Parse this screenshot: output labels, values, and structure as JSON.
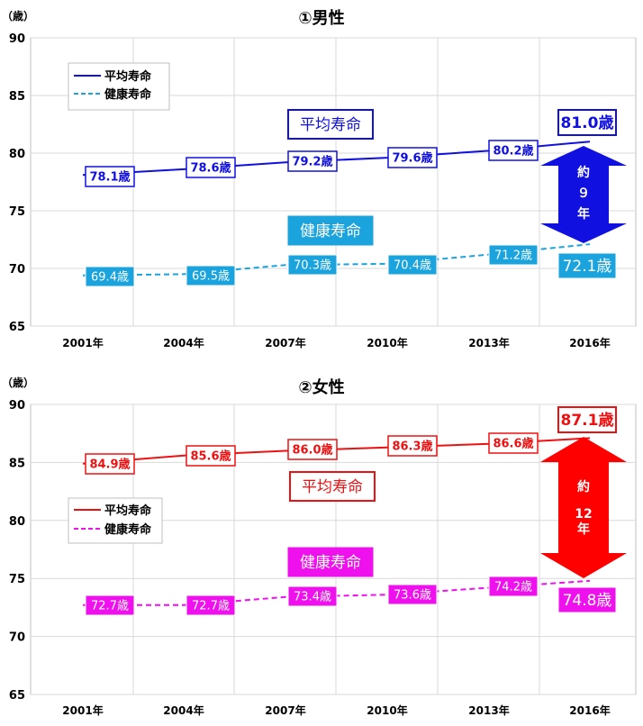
{
  "chart_data": [
    {
      "type": "line",
      "title": "①男性",
      "unit": "（歳）",
      "categories": [
        "2001年",
        "2004年",
        "2007年",
        "2010年",
        "2013年",
        "2016年"
      ],
      "ylim": [
        65,
        90
      ],
      "yticks": [
        "65",
        "70",
        "75",
        "80",
        "85",
        "90"
      ],
      "grid": true,
      "legend_position": "top-left",
      "series": [
        {
          "name": "平均寿命",
          "style": "solid",
          "color": "#1010e0",
          "values": [
            78.1,
            78.6,
            79.2,
            79.6,
            80.2,
            81.0
          ],
          "labels": [
            "78.1歳",
            "78.6歳",
            "79.2歳",
            "79.6歳",
            "80.2歳",
            "81.0歳"
          ]
        },
        {
          "name": "健康寿命",
          "style": "dashed",
          "color": "#1aa3dc",
          "values": [
            69.4,
            69.5,
            70.3,
            70.4,
            71.2,
            72.1
          ],
          "labels": [
            "69.4歳",
            "69.5歳",
            "70.3歳",
            "70.4歳",
            "71.2歳",
            "72.1歳"
          ]
        }
      ],
      "callouts": {
        "avg": "平均寿命",
        "healthy": "健康寿命"
      },
      "gap_label": [
        "約",
        "９",
        "年"
      ],
      "arrow_color": "#1010e0"
    },
    {
      "type": "line",
      "title": "②女性",
      "unit": "（歳）",
      "categories": [
        "2001年",
        "2004年",
        "2007年",
        "2010年",
        "2013年",
        "2016年"
      ],
      "ylim": [
        65,
        90
      ],
      "yticks": [
        "65",
        "70",
        "75",
        "80",
        "85",
        "90"
      ],
      "grid": true,
      "legend_position": "middle-left",
      "series": [
        {
          "name": "平均寿命",
          "style": "solid",
          "color": "#ee1111",
          "values": [
            84.9,
            85.6,
            86.0,
            86.3,
            86.6,
            87.1
          ],
          "labels": [
            "84.9歳",
            "85.6歳",
            "86.0歳",
            "86.3歳",
            "86.6歳",
            "87.1歳"
          ]
        },
        {
          "name": "健康寿命",
          "style": "dashed",
          "color": "#ee11ee",
          "values": [
            72.7,
            72.7,
            73.4,
            73.6,
            74.2,
            74.8
          ],
          "labels": [
            "72.7歳",
            "72.7歳",
            "73.4歳",
            "73.6歳",
            "74.2歳",
            "74.8歳"
          ]
        }
      ],
      "callouts": {
        "avg": "平均寿命",
        "healthy": "健康寿命"
      },
      "gap_label": [
        "約",
        "12",
        "年"
      ],
      "arrow_color": "#ff0000"
    }
  ]
}
